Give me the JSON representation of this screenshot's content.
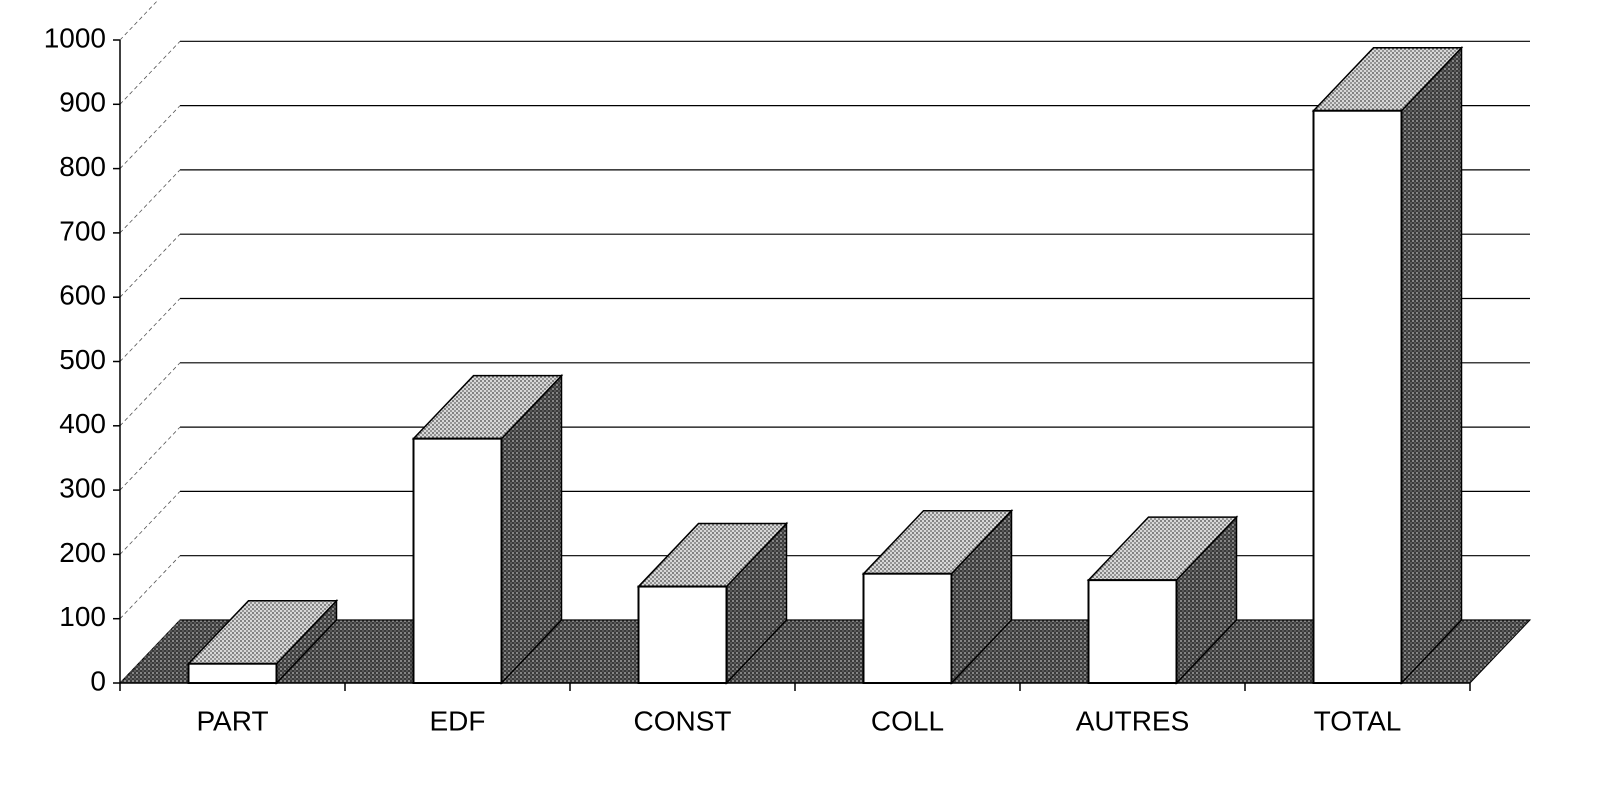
{
  "chart_data": {
    "type": "bar",
    "categories": [
      "PART",
      "EDF",
      "CONST",
      "COLL",
      "AUTRES",
      "TOTAL"
    ],
    "values": [
      30,
      380,
      150,
      170,
      160,
      890
    ],
    "color": "#ffffff",
    "ylim": [
      0,
      1000
    ],
    "yticks": [
      0,
      100,
      200,
      300,
      400,
      500,
      600,
      700,
      800,
      900,
      1000
    ],
    "grid": true
  }
}
